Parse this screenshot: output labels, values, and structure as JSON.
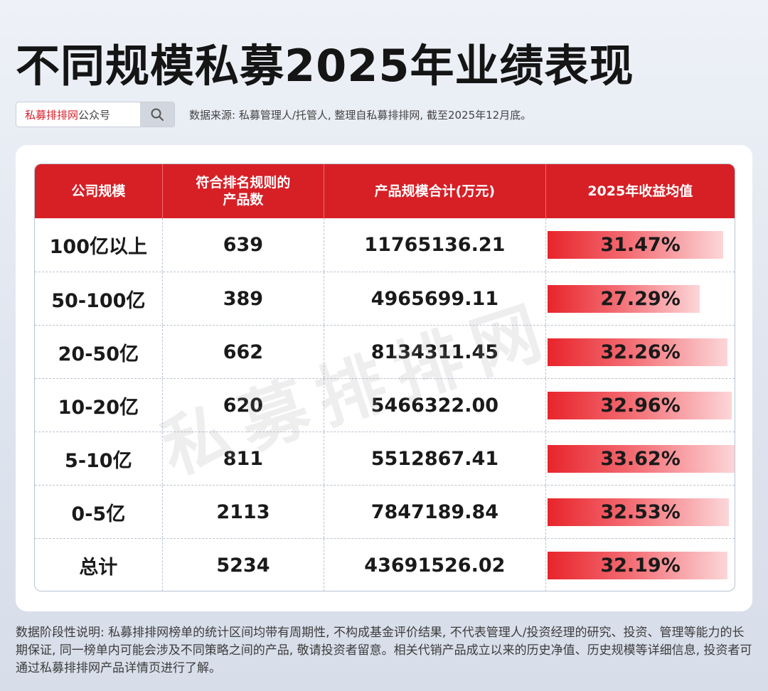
{
  "title": "不同规模私募2025年业绩表现",
  "search": {
    "brand": "私募排排网",
    "suffix": "公众号",
    "icon": "search-icon"
  },
  "source": "数据来源: 私募管理人/托管人, 整理自私募排排网, 截至2025年12月底。",
  "watermark": "私募排排网",
  "disclaimer": "数据阶段性说明: 私募排排网榜单的统计区间均带有周期性, 不构成基金评价结果, 不代表管理人/投资经理的研究、投资、管理等能力的长期保证, 同一榜单内可能会涉及不同策略之间的产品, 敬请投资者留意。相关代销产品成立以来的历史净值、历史规模等详细信息, 投资者可通过私募排排网产品详情页进行了解。",
  "colors": {
    "header": "#d71f26",
    "bar_start": "#e8242b",
    "bar_end": "#fcd6d8"
  },
  "chart_data": {
    "type": "table",
    "columns": [
      "公司规模",
      "符合排名规则的产品数",
      "产品规模合计(万元)",
      "2025年收益均值"
    ],
    "rows": [
      {
        "scale": "100亿以上",
        "count": "639",
        "total": "11765136.21",
        "ret": "31.47%",
        "ret_value": 31.47
      },
      {
        "scale": "50-100亿",
        "count": "389",
        "total": "4965699.11",
        "ret": "27.29%",
        "ret_value": 27.29
      },
      {
        "scale": "20-50亿",
        "count": "662",
        "total": "8134311.45",
        "ret": "32.26%",
        "ret_value": 32.26
      },
      {
        "scale": "10-20亿",
        "count": "620",
        "total": "5466322.00",
        "ret": "32.96%",
        "ret_value": 32.96
      },
      {
        "scale": "5-10亿",
        "count": "811",
        "total": "5512867.41",
        "ret": "33.62%",
        "ret_value": 33.62
      },
      {
        "scale": "0-5亿",
        "count": "2113",
        "total": "7847189.84",
        "ret": "32.53%",
        "ret_value": 32.53
      },
      {
        "scale": "总计",
        "count": "5234",
        "total": "43691526.02",
        "ret": "32.19%",
        "ret_value": 32.19
      }
    ],
    "bar_max": 33.62
  }
}
